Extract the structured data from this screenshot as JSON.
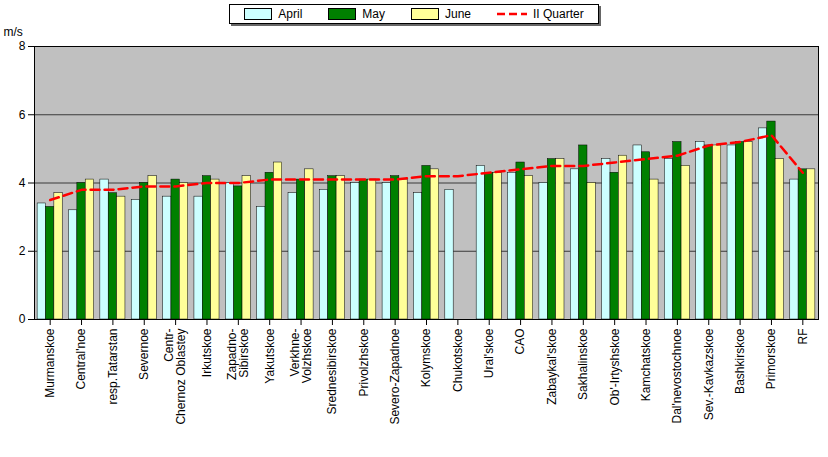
{
  "chart_data": {
    "type": "bar",
    "categories": [
      "Murmanskoe",
      "Central'noe",
      "resp.Tatarstan",
      "Severnoe",
      "Centr-\nChernoz Oblastey",
      "Irkutskoe",
      "Zapadno-\nSibirskoe",
      "Yakutskoe",
      "Verkhne-\nVolzhskoe",
      "Srednesibirskoe",
      "Privolzhskoe",
      "Severo-Zapadnoe",
      "Kolymskoe",
      "Chukotskoe",
      "Ural'skoe",
      "CAO",
      "Zabaykal'skoe",
      "Sakhalinskoe",
      "Ob'-Irtyshskoe",
      "Kamchatskoe",
      "Dal'nevostochnoe",
      "Sev.-Kavkazskoe",
      "Bashkirskoe",
      "Primorskoe",
      "RF"
    ],
    "series": [
      {
        "name": "April",
        "color": "#ccffff",
        "values": [
          3.4,
          3.2,
          4.1,
          3.5,
          3.6,
          3.6,
          4.0,
          3.3,
          3.7,
          3.8,
          4.0,
          4.0,
          3.7,
          3.8,
          4.5,
          4.3,
          4.0,
          4.4,
          4.7,
          5.1,
          4.7,
          5.2,
          5.1,
          5.6,
          4.1
        ]
      },
      {
        "name": "May",
        "color": "#008000",
        "values": [
          3.3,
          4.0,
          3.7,
          4.0,
          4.1,
          4.2,
          3.9,
          4.3,
          4.1,
          4.2,
          4.1,
          4.2,
          4.5,
          null,
          4.3,
          4.6,
          4.7,
          5.1,
          4.3,
          4.9,
          5.2,
          5.1,
          5.2,
          5.8,
          4.4
        ]
      },
      {
        "name": "June",
        "color": "#ffff99",
        "values": [
          3.7,
          4.1,
          3.6,
          4.2,
          4.0,
          4.1,
          4.2,
          4.6,
          4.4,
          4.2,
          4.1,
          4.1,
          4.4,
          null,
          4.3,
          4.2,
          4.7,
          4.0,
          4.8,
          4.1,
          4.5,
          5.1,
          5.2,
          4.7,
          4.4
        ]
      },
      {
        "name": "II Quarter",
        "color": "#ff0000",
        "type": "line",
        "line_style": "dashed",
        "values": [
          3.5,
          3.8,
          3.8,
          3.9,
          3.9,
          4.0,
          4.0,
          4.1,
          4.1,
          4.1,
          4.1,
          4.1,
          4.2,
          4.2,
          4.3,
          4.4,
          4.5,
          4.5,
          4.6,
          4.7,
          4.8,
          5.1,
          5.2,
          5.4,
          4.3
        ]
      }
    ],
    "y_label": "m/s",
    "ylim": [
      0,
      8
    ],
    "yticks": [
      0,
      2,
      4,
      6,
      8
    ],
    "grid": true,
    "legend": "top"
  }
}
